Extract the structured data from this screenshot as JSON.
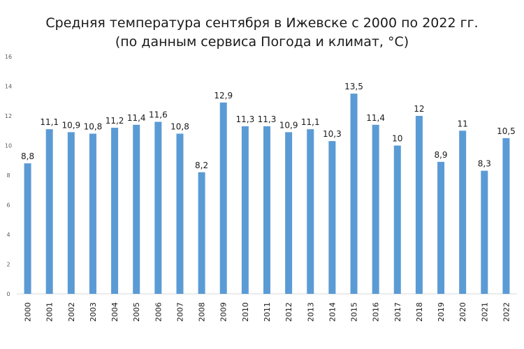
{
  "chart_data": {
    "type": "bar",
    "title": "Средняя температура сентября в Ижевске с 2000 по 2022 гг.",
    "subtitle": "(по данным сервиса Погода и климат, °C)",
    "xlabel": "",
    "ylabel": "",
    "ylim": [
      0,
      16
    ],
    "yticks": [
      0,
      2,
      4,
      6,
      8,
      10,
      12,
      14,
      16
    ],
    "grid": false,
    "legend": "none",
    "bar_color": "#5b9bd5",
    "categories": [
      "2000",
      "2001",
      "2002",
      "2003",
      "2004",
      "2005",
      "2006",
      "2007",
      "2008",
      "2009",
      "2010",
      "2011",
      "2012",
      "2013",
      "2014",
      "2015",
      "2016",
      "2017",
      "2018",
      "2019",
      "2020",
      "2021",
      "2022"
    ],
    "values": [
      8.8,
      11.1,
      10.9,
      10.8,
      11.2,
      11.4,
      11.6,
      10.8,
      8.2,
      12.9,
      11.3,
      11.3,
      10.9,
      11.1,
      10.3,
      13.5,
      11.4,
      10,
      12,
      8.9,
      11,
      8.3,
      10.5
    ],
    "data_labels": [
      "8,8",
      "11,1",
      "10,9",
      "10,8",
      "11,2",
      "11,4",
      "11,6",
      "10,8",
      "8,2",
      "12,9",
      "11,3",
      "11,3",
      "10,9",
      "11,1",
      "10,3",
      "13,5",
      "11,4",
      "10",
      "12",
      "8,9",
      "11",
      "8,3",
      "10,5"
    ]
  }
}
